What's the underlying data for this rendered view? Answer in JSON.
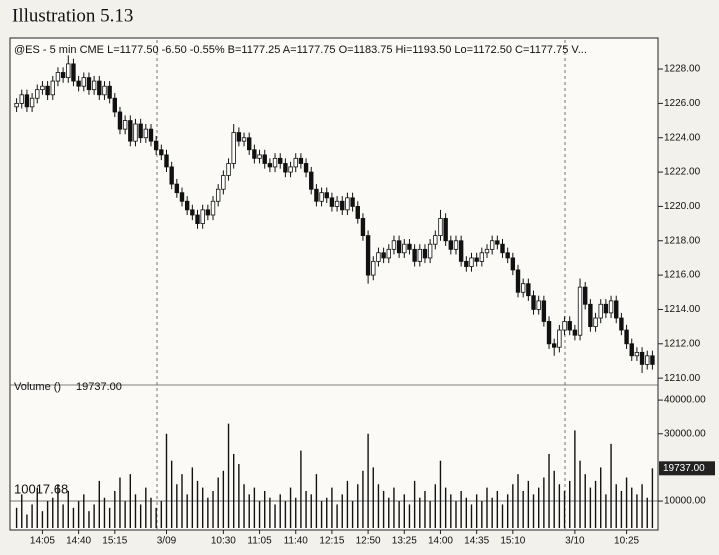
{
  "chart_data": {
    "type": "candlestick",
    "title": "Illustration 5.13",
    "subtitle": "@ES - 5 min  CME  L=1177.50  -6.50  -0.55%  B=1177.25  A=1177.75  O=1183.75  Hi=1193.50  Lo=1172.50  C=1177.75  V...",
    "up_color": "#ffffff",
    "down_color": "#111111",
    "categories": [
      null,
      null,
      null,
      null,
      null,
      "14:05",
      null,
      null,
      null,
      null,
      null,
      null,
      "14:40",
      null,
      null,
      null,
      null,
      null,
      null,
      "15:15",
      null,
      null,
      null,
      null,
      null,
      null,
      null,
      null,
      null,
      "3/09",
      null,
      null,
      null,
      null,
      null,
      null,
      null,
      null,
      null,
      null,
      "10:30",
      null,
      null,
      null,
      null,
      null,
      null,
      "11:05",
      null,
      null,
      null,
      null,
      null,
      null,
      "11:40",
      null,
      null,
      null,
      null,
      null,
      null,
      "12:15",
      null,
      null,
      null,
      null,
      null,
      null,
      "12:50",
      null,
      null,
      null,
      null,
      null,
      null,
      "13:25",
      null,
      null,
      null,
      null,
      null,
      null,
      "14:00",
      null,
      null,
      null,
      null,
      null,
      null,
      "14:35",
      null,
      null,
      null,
      null,
      null,
      null,
      "15:10",
      null,
      null,
      null,
      null,
      null,
      null,
      null,
      null,
      null,
      null,
      null,
      "3/10",
      null,
      null,
      null,
      null,
      null,
      null,
      null,
      null,
      null,
      "10:25",
      null,
      null,
      null,
      null,
      null
    ],
    "open": [
      1225.8,
      1226.0,
      1226.5,
      1225.8,
      1226.3,
      1226.8,
      1227.0,
      1226.5,
      1227.3,
      1227.8,
      1227.5,
      1228.3,
      1227.3,
      1227.0,
      1227.5,
      1226.8,
      1227.3,
      1226.5,
      1227.0,
      1226.3,
      1225.5,
      1224.5,
      1225.0,
      1223.8,
      1224.8,
      1224.0,
      1224.5,
      1223.8,
      1223.3,
      1223.0,
      1222.3,
      1221.3,
      1220.8,
      1220.3,
      1219.8,
      1219.5,
      1219.0,
      1219.8,
      1219.5,
      1220.3,
      1221.0,
      1221.8,
      1222.5,
      1224.3,
      1223.8,
      1224.0,
      1223.3,
      1222.8,
      1223.0,
      1222.5,
      1222.3,
      1222.8,
      1222.5,
      1222.0,
      1222.3,
      1222.8,
      1222.5,
      1222.0,
      1221.0,
      1220.3,
      1220.8,
      1220.5,
      1220.0,
      1220.3,
      1219.8,
      1220.5,
      1220.0,
      1219.3,
      1218.3,
      1216.0,
      1216.8,
      1217.3,
      1217.0,
      1217.5,
      1218.0,
      1217.3,
      1217.8,
      1217.5,
      1216.8,
      1217.5,
      1217.0,
      1217.8,
      1218.3,
      1219.3,
      1218.0,
      1217.5,
      1218.0,
      1216.8,
      1216.5,
      1217.0,
      1216.8,
      1217.3,
      1217.5,
      1218.0,
      1217.8,
      1217.3,
      1217.0,
      1216.3,
      1215.0,
      1215.5,
      1214.8,
      1214.0,
      1214.5,
      1213.3,
      1212.0,
      1211.8,
      1212.8,
      1213.3,
      1212.8,
      1212.5,
      1215.3,
      1214.3,
      1213.0,
      1213.5,
      1214.3,
      1213.8,
      1214.5,
      1213.5,
      1212.8,
      1212.0,
      1211.3,
      1211.5,
      1210.8,
      1211.3
    ],
    "high": [
      1226.3,
      1226.8,
      1226.8,
      1226.6,
      1227.1,
      1227.3,
      1227.3,
      1227.6,
      1228.1,
      1228.1,
      1228.8,
      1228.6,
      1227.6,
      1227.8,
      1227.8,
      1227.6,
      1227.6,
      1227.3,
      1227.3,
      1226.6,
      1225.8,
      1225.3,
      1225.3,
      1225.1,
      1225.1,
      1224.8,
      1224.8,
      1224.1,
      1223.6,
      1223.3,
      1222.6,
      1221.6,
      1221.1,
      1220.6,
      1220.1,
      1219.8,
      1220.1,
      1220.1,
      1220.6,
      1221.3,
      1222.1,
      1222.8,
      1224.8,
      1224.6,
      1224.3,
      1224.3,
      1223.6,
      1223.3,
      1223.3,
      1222.8,
      1223.1,
      1223.1,
      1222.8,
      1222.6,
      1223.1,
      1223.1,
      1222.8,
      1222.3,
      1221.3,
      1221.1,
      1221.1,
      1220.8,
      1220.6,
      1220.6,
      1220.8,
      1220.8,
      1220.3,
      1219.6,
      1218.6,
      1217.1,
      1217.6,
      1217.6,
      1217.8,
      1218.3,
      1218.3,
      1218.1,
      1218.1,
      1217.8,
      1217.8,
      1217.8,
      1218.1,
      1218.6,
      1219.8,
      1219.6,
      1218.3,
      1218.3,
      1218.3,
      1217.1,
      1217.3,
      1217.3,
      1217.6,
      1217.8,
      1218.3,
      1218.3,
      1218.1,
      1217.6,
      1217.3,
      1216.6,
      1215.8,
      1215.8,
      1215.1,
      1214.8,
      1214.8,
      1213.6,
      1212.3,
      1213.1,
      1213.6,
      1213.6,
      1213.1,
      1215.8,
      1215.6,
      1214.6,
      1213.8,
      1214.6,
      1214.6,
      1214.8,
      1214.8,
      1213.8,
      1213.1,
      1212.3,
      1211.8,
      1211.8,
      1211.6,
      1211.6
    ],
    "low": [
      1225.5,
      1225.7,
      1225.5,
      1225.5,
      1226.0,
      1226.5,
      1226.2,
      1226.2,
      1227.0,
      1227.2,
      1227.2,
      1227.0,
      1226.7,
      1226.7,
      1226.5,
      1226.5,
      1226.2,
      1226.2,
      1226.0,
      1225.2,
      1224.2,
      1224.2,
      1223.5,
      1223.5,
      1223.7,
      1223.7,
      1223.5,
      1223.0,
      1222.7,
      1222.0,
      1221.0,
      1220.5,
      1220.0,
      1219.5,
      1219.2,
      1218.7,
      1218.7,
      1219.2,
      1219.2,
      1220.0,
      1220.7,
      1221.5,
      1222.2,
      1223.5,
      1223.5,
      1223.0,
      1222.5,
      1222.5,
      1222.2,
      1222.0,
      1222.0,
      1222.2,
      1221.7,
      1221.7,
      1222.0,
      1222.2,
      1221.7,
      1220.7,
      1220.0,
      1220.0,
      1220.2,
      1219.7,
      1219.7,
      1219.5,
      1219.5,
      1219.7,
      1219.0,
      1218.0,
      1215.5,
      1215.7,
      1216.5,
      1216.7,
      1216.7,
      1217.2,
      1217.0,
      1217.0,
      1217.2,
      1216.5,
      1216.5,
      1216.7,
      1216.7,
      1217.5,
      1218.0,
      1217.7,
      1217.2,
      1217.2,
      1216.5,
      1216.2,
      1216.2,
      1216.5,
      1216.5,
      1217.0,
      1217.2,
      1217.5,
      1217.0,
      1216.7,
      1216.0,
      1214.7,
      1214.7,
      1214.5,
      1213.7,
      1213.7,
      1213.0,
      1211.7,
      1211.3,
      1211.5,
      1212.5,
      1212.5,
      1212.2,
      1212.2,
      1214.0,
      1212.7,
      1212.7,
      1213.2,
      1213.5,
      1213.5,
      1213.2,
      1212.5,
      1211.7,
      1211.0,
      1211.0,
      1210.3,
      1210.5,
      1210.5
    ],
    "close": [
      1226.0,
      1226.5,
      1225.8,
      1226.3,
      1226.8,
      1227.0,
      1226.5,
      1227.3,
      1227.8,
      1227.5,
      1228.3,
      1227.3,
      1227.0,
      1227.5,
      1226.8,
      1227.3,
      1226.5,
      1227.0,
      1226.3,
      1225.5,
      1224.5,
      1225.0,
      1223.8,
      1224.8,
      1224.0,
      1224.5,
      1223.8,
      1223.3,
      1223.0,
      1222.3,
      1221.3,
      1220.8,
      1220.3,
      1219.8,
      1219.5,
      1219.0,
      1219.8,
      1219.5,
      1220.3,
      1221.0,
      1221.8,
      1222.5,
      1224.3,
      1223.8,
      1224.0,
      1223.3,
      1222.8,
      1223.0,
      1222.5,
      1222.3,
      1222.8,
      1222.5,
      1222.0,
      1222.3,
      1222.8,
      1222.5,
      1222.0,
      1221.0,
      1220.3,
      1220.8,
      1220.5,
      1220.0,
      1220.3,
      1219.8,
      1220.5,
      1220.0,
      1219.3,
      1218.3,
      1216.0,
      1216.8,
      1217.3,
      1217.0,
      1217.5,
      1218.0,
      1217.3,
      1217.8,
      1217.5,
      1216.8,
      1217.5,
      1217.0,
      1217.8,
      1218.3,
      1219.3,
      1218.0,
      1217.5,
      1218.0,
      1216.8,
      1216.5,
      1217.0,
      1216.8,
      1217.3,
      1217.5,
      1218.0,
      1217.8,
      1217.3,
      1217.0,
      1216.3,
      1215.0,
      1215.5,
      1214.8,
      1214.0,
      1214.5,
      1213.3,
      1212.0,
      1211.8,
      1212.8,
      1213.3,
      1212.8,
      1212.5,
      1215.3,
      1214.3,
      1213.0,
      1213.5,
      1214.3,
      1213.8,
      1214.5,
      1213.5,
      1212.8,
      1212.0,
      1211.3,
      1211.5,
      1210.8,
      1211.3,
      1210.8
    ],
    "ylim": [
      1209.6,
      1229.4
    ],
    "yticks": [
      {
        "value": 1210,
        "label": "1210.00"
      },
      {
        "value": 1212,
        "label": "1212.00"
      },
      {
        "value": 1214,
        "label": "1214.00"
      },
      {
        "value": 1216,
        "label": "1216.00"
      },
      {
        "value": 1218,
        "label": "1218.00"
      },
      {
        "value": 1220,
        "label": "1220.00"
      },
      {
        "value": 1222,
        "label": "1222.00"
      },
      {
        "value": 1224,
        "label": "1224.00"
      },
      {
        "value": 1226,
        "label": "1226.00"
      },
      {
        "value": 1228,
        "label": "1228.00"
      }
    ],
    "volume": {
      "name": "Volume ()",
      "color": "#111111",
      "values": [
        8000,
        12000,
        6000,
        9000,
        14000,
        7000,
        10000,
        11000,
        15000,
        9000,
        13000,
        8000,
        10000,
        12000,
        7000,
        9000,
        16000,
        11000,
        8000,
        13000,
        17000,
        10000,
        18000,
        12000,
        9000,
        14000,
        11000,
        8000,
        10000,
        30000,
        22000,
        15000,
        18000,
        12000,
        20000,
        16000,
        14000,
        11000,
        13000,
        17000,
        19000,
        33000,
        24000,
        21000,
        15000,
        12000,
        14000,
        10000,
        13000,
        11000,
        9000,
        12000,
        10000,
        14000,
        11000,
        25000,
        13000,
        12000,
        18000,
        10000,
        11000,
        14000,
        9000,
        12000,
        16000,
        10000,
        15000,
        19000,
        30000,
        20000,
        15000,
        13000,
        11000,
        14000,
        10000,
        12000,
        9000,
        16000,
        11000,
        13000,
        10000,
        15000,
        22000,
        14000,
        12000,
        10000,
        13000,
        11000,
        9000,
        12000,
        10000,
        14000,
        11000,
        13000,
        9000,
        12000,
        15000,
        18000,
        13000,
        16000,
        12000,
        14000,
        17000,
        24000,
        19000,
        15000,
        13000,
        16000,
        31000,
        22000,
        18000,
        14000,
        16000,
        20000,
        12000,
        27000,
        15000,
        13000,
        17000,
        14000,
        12000,
        15000,
        11000,
        19737
      ],
      "value_labels": [
        null,
        null,
        null,
        null,
        null,
        null,
        null,
        null,
        null,
        null,
        null,
        null,
        null,
        null,
        null,
        null,
        null,
        null,
        null,
        null,
        null,
        null,
        null,
        null,
        null,
        null,
        null,
        null,
        null,
        null,
        null,
        null,
        null,
        null,
        null,
        null,
        null,
        null,
        null,
        null,
        null,
        null,
        null,
        null,
        null,
        null,
        null,
        null,
        null,
        null,
        null,
        null,
        null,
        null,
        null,
        null,
        null,
        null,
        null,
        null,
        null,
        null,
        null,
        null,
        null,
        null,
        null,
        null,
        null,
        null,
        null,
        null,
        null,
        null,
        null,
        null,
        null,
        null,
        null,
        null,
        null,
        null,
        null,
        null,
        null,
        null,
        null,
        null,
        null,
        null,
        null,
        null,
        null,
        null,
        null,
        null,
        null,
        null,
        null,
        null,
        null,
        null,
        null,
        null,
        null,
        null,
        null,
        null,
        null,
        null,
        null,
        null,
        null,
        null,
        null,
        null,
        null,
        null,
        null,
        null,
        null,
        null,
        null,
        "19737.00"
      ],
      "average": 10017.68,
      "ylim": [
        2000,
        43000
      ],
      "yticks": [
        {
          "value": 10000,
          "label": "10000.00"
        },
        {
          "value": 30000,
          "label": "30000.00"
        },
        {
          "value": 40000,
          "label": "40000.00"
        }
      ]
    }
  }
}
